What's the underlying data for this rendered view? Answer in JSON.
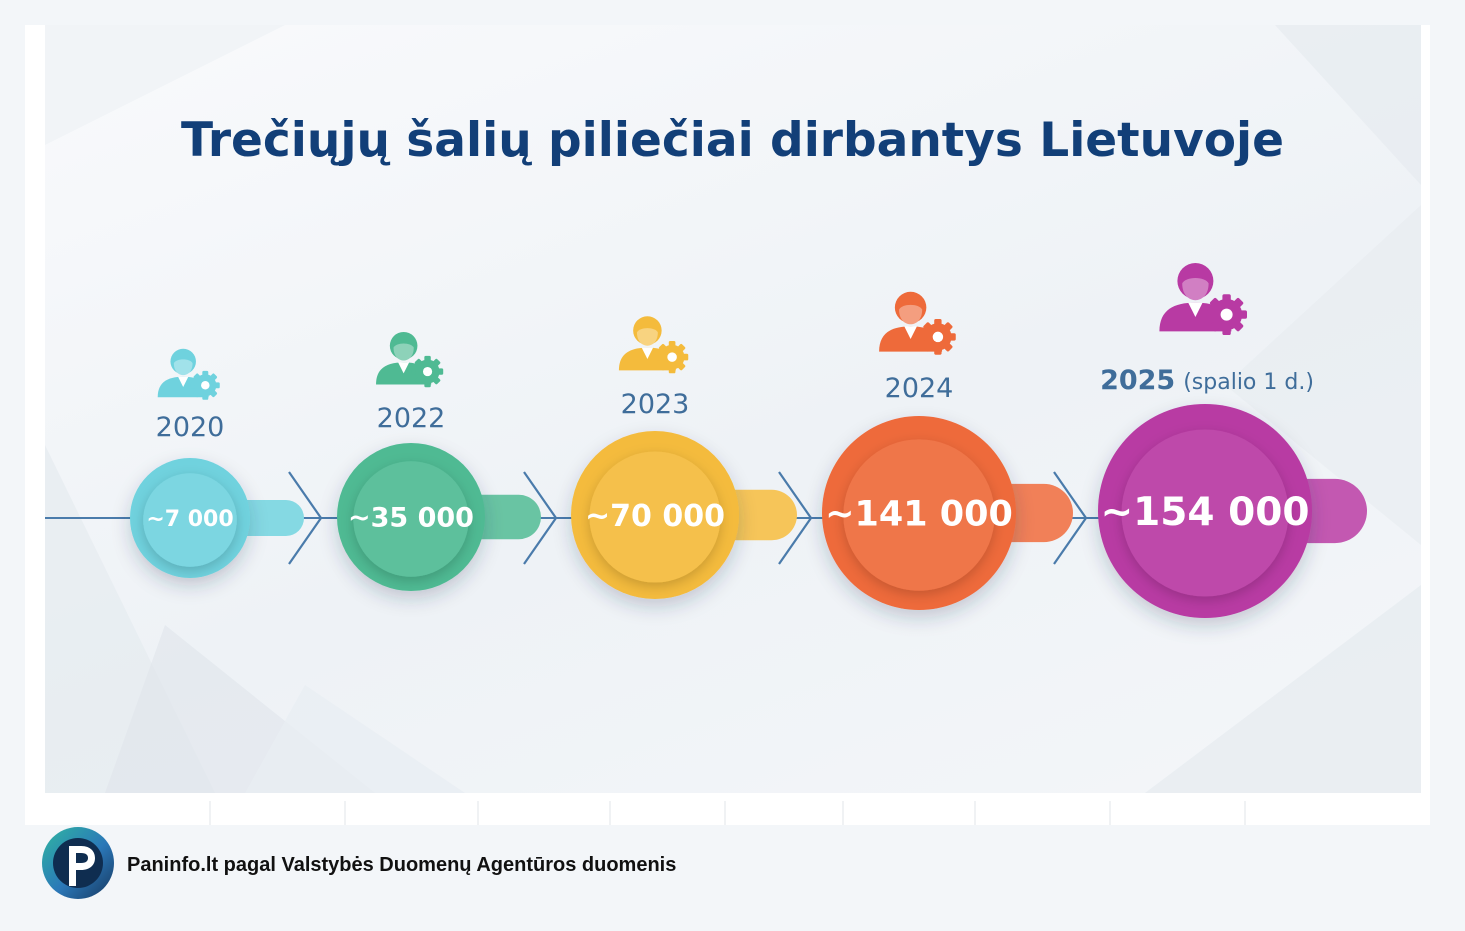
{
  "title": "Trečiųjų šalių piliečiai dirbantys Lietuvoje",
  "chart_data": {
    "type": "timeline",
    "title": "Trečiųjų šalių piliečiai dirbantys Lietuvoje",
    "points": [
      {
        "year": "2020",
        "note": "",
        "value": 7000,
        "label": "~7 000",
        "color": "#6fd2de"
      },
      {
        "year": "2022",
        "note": "",
        "value": 35000,
        "label": "~35 000",
        "color": "#4fba93"
      },
      {
        "year": "2023",
        "note": "",
        "value": 70000,
        "label": "~70 000",
        "color": "#f4bb3c"
      },
      {
        "year": "2024",
        "note": "",
        "value": 141000,
        "label": "~141 000",
        "color": "#ee6a3a"
      },
      {
        "year": "2025",
        "note": "(spalio 1 d.)",
        "value": 154000,
        "label": "~154 000",
        "color": "#b83aa3"
      }
    ],
    "icon": "worker-with-gear-icon",
    "line_color": "#4a7bab",
    "year_label_color": "#3f6d9a"
  },
  "footer": {
    "logo_icon": "paninfo-p-logo",
    "logo_colors": [
      "#1c9a98",
      "#2e6fb0",
      "#0e2f53"
    ],
    "source_text": "Paninfo.lt pagal Valstybės Duomenų Agentūros duomenis"
  }
}
